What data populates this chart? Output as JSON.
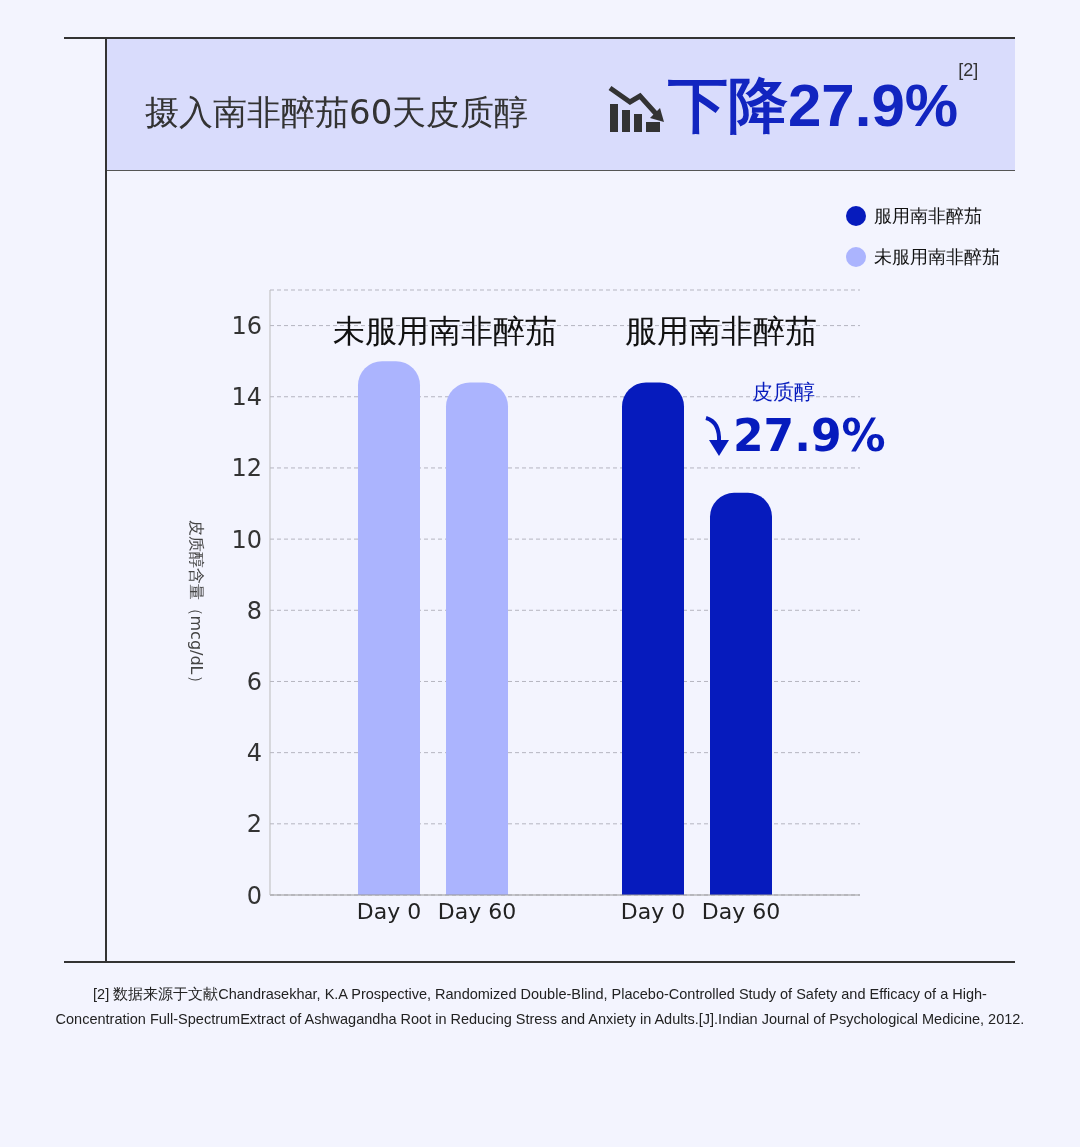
{
  "chart_data": {
    "type": "bar",
    "title": "摄入南非醉茄60天皮质醇",
    "subtitle": "下降27.9%$^{[2]}$",
    "ylabel": "皮质醇含量（mcg/dL）",
    "categories": [
      "Day 0",
      "Day 60",
      null,
      "Day 0",
      "Day 60"
    ],
    "series": [
      {
        "name": "服用南非醉茄",
        "color": "#061bbd",
        "values": [
          null,
          null,
          null,
          14.4,
          11.3
        ]
      },
      {
        "name": "未服用南非醉茄",
        "color": "#abb4fe",
        "values": [
          15.0,
          14.4,
          null,
          null,
          null
        ]
      }
    ],
    "stacked": true,
    "ylim": [
      0,
      17
    ],
    "yticks": [
      0,
      2,
      4,
      6,
      8,
      10,
      12,
      14,
      16
    ],
    "grid": "y",
    "legend": "top right",
    "annotations": [
      "未服用南非醉茄",
      "服用南非醉茄",
      "皮质醇 27.9%",
      "[2] 数据来源于文献Chandrasekhar, K.A Prospective, Randomized Double-Blind, Placebo-Controlled Study of Safety and Efficacy of a High-Concentration Full-SpectrumExtract of Ashwagandha Root in Reducing Stress and Anxiety in Adults.[J].Indian Journal of Psychological Medicine, 2012."
    ]
  }
}
